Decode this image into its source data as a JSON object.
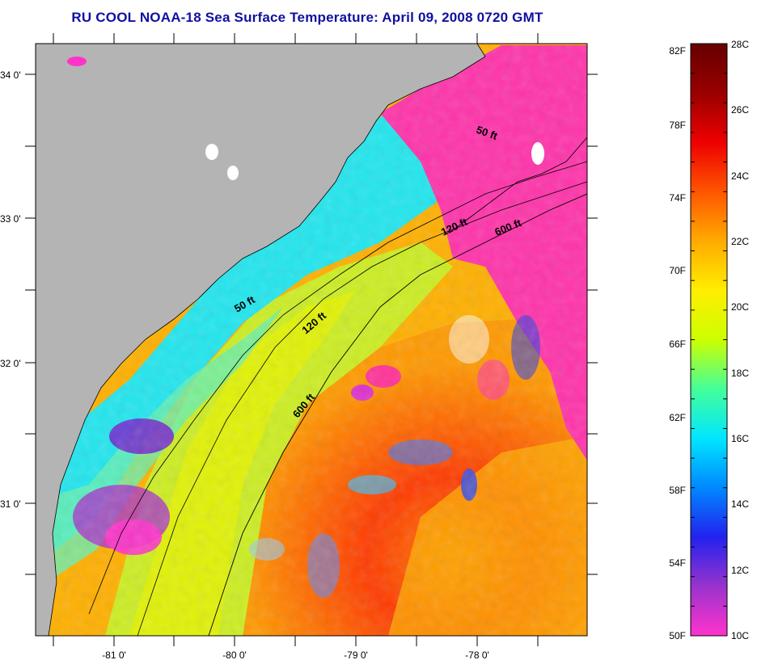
{
  "title": "RU COOL  NOAA-18  Sea Surface Temperature:  April 09, 2008 0720 GMT",
  "map": {
    "lat_labels": [
      "34 0'",
      "33 0'",
      "32 0'",
      "31 0'"
    ],
    "lon_labels": [
      "-81 0'",
      "-80 0'",
      "-79 0'",
      "-78 0'"
    ],
    "contours": [
      {
        "name": "50 ft",
        "labels": [
          "50 ft",
          "50 ft"
        ]
      },
      {
        "name": "120 ft",
        "labels": [
          "120 ft",
          "120 ft"
        ]
      },
      {
        "name": "600 ft",
        "labels": [
          "600 ft",
          "600 ft"
        ]
      }
    ],
    "colors": {
      "land": "#b4b4b4",
      "frame": "#000000"
    }
  },
  "colorbar": {
    "fahrenheit_labels": [
      "82F",
      "78F",
      "74F",
      "70F",
      "66F",
      "62F",
      "58F",
      "54F",
      "50F"
    ],
    "celsius_labels": [
      "28C",
      "26C",
      "24C",
      "22C",
      "20C",
      "18C",
      "16C",
      "14C",
      "12C",
      "10C"
    ],
    "range_c": [
      10,
      28
    ],
    "stops": [
      "#ff33cc",
      "#9933cc",
      "#2222ee",
      "#0088ff",
      "#00e6ff",
      "#44ff99",
      "#ccff00",
      "#ffee00",
      "#ffaa00",
      "#ff5500",
      "#ee0000",
      "#990000",
      "#660000"
    ]
  }
}
